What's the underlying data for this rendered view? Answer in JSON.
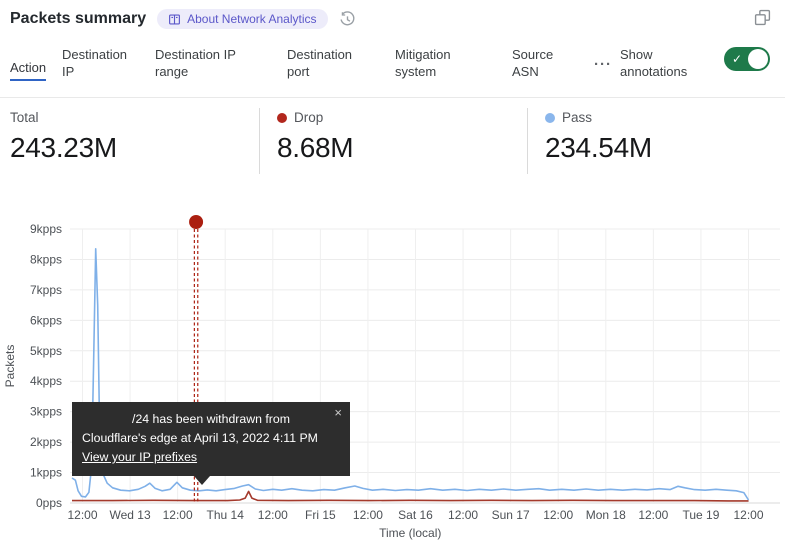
{
  "header": {
    "title": "Packets summary",
    "about_badge": "About Network Analytics",
    "icons": {
      "about": "book-icon",
      "time_window": "history-icon",
      "popout": "expand-icon"
    }
  },
  "tabs": {
    "items": [
      {
        "label": "Action",
        "active": true
      },
      {
        "label": "Destination IP",
        "active": false
      },
      {
        "label": "Destination IP range",
        "active": false
      },
      {
        "label": "Destination port",
        "active": false
      },
      {
        "label": "Mitigation system",
        "active": false
      },
      {
        "label": "Source ASN",
        "active": false
      }
    ],
    "more_glyph": "···",
    "show_annotations_label": "Show annotations",
    "annotations_enabled": true,
    "toggle_check_glyph": "✓"
  },
  "stats": {
    "items": [
      {
        "label": "Total",
        "value": "243.23M",
        "dot_color": null
      },
      {
        "label": "Drop",
        "value": "8.68M",
        "dot_color": "#b2271d"
      },
      {
        "label": "Pass",
        "value": "234.54M",
        "dot_color": "#8ab6ec"
      }
    ]
  },
  "annotation_tooltip": {
    "line1": "/24 has been withdrawn from",
    "line2": "Cloudflare's edge at April 13, 2022 4:11 PM",
    "link_label": "View your IP prefixes",
    "close_glyph": "×"
  },
  "colors": {
    "accent_blue": "#2f64c5",
    "toggle_green": "#1e7a4a",
    "drop_red": "#b2271d",
    "pass_blue": "#8ab6ec",
    "annotation_red": "#ab1f10",
    "tooltip_bg": "#2d2d2d",
    "badge_bg": "#edecfa",
    "badge_text": "#5b57c9"
  },
  "chart_data": {
    "type": "line",
    "title": "",
    "xlabel": "Time (local)",
    "ylabel": "Packets",
    "ylim": [
      0,
      9
    ],
    "y_unit": "kpps",
    "grid": true,
    "y_ticks": [
      "0pps",
      "1kpps",
      "2kpps",
      "3kpps",
      "4kpps",
      "5kpps",
      "6kpps",
      "7kpps",
      "8kpps",
      "9kpps"
    ],
    "x_ticks": [
      "12:00",
      "Wed 13",
      "12:00",
      "Thu 14",
      "12:00",
      "Fri 15",
      "12:00",
      "Sat 16",
      "12:00",
      "Sun 17",
      "12:00",
      "Mon 18",
      "12:00",
      "Tue 19",
      "12:00"
    ],
    "series": [
      {
        "name": "Pass",
        "color": "#7fb0e8",
        "points": [
          [
            0.0,
            0.82
          ],
          [
            0.005,
            0.75
          ],
          [
            0.009,
            0.4
          ],
          [
            0.014,
            0.22
          ],
          [
            0.02,
            0.2
          ],
          [
            0.025,
            0.35
          ],
          [
            0.029,
            1.2
          ],
          [
            0.032,
            4.6
          ],
          [
            0.035,
            8.35
          ],
          [
            0.038,
            6.5
          ],
          [
            0.041,
            2.2
          ],
          [
            0.045,
            1.0
          ],
          [
            0.052,
            0.65
          ],
          [
            0.06,
            0.5
          ],
          [
            0.072,
            0.42
          ],
          [
            0.085,
            0.4
          ],
          [
            0.098,
            0.45
          ],
          [
            0.108,
            0.55
          ],
          [
            0.115,
            0.65
          ],
          [
            0.123,
            0.48
          ],
          [
            0.133,
            0.4
          ],
          [
            0.145,
            0.45
          ],
          [
            0.155,
            0.68
          ],
          [
            0.163,
            0.5
          ],
          [
            0.175,
            0.42
          ],
          [
            0.188,
            0.4
          ],
          [
            0.2,
            0.43
          ],
          [
            0.213,
            0.4
          ],
          [
            0.226,
            0.44
          ],
          [
            0.24,
            0.48
          ],
          [
            0.252,
            0.56
          ],
          [
            0.261,
            0.6
          ],
          [
            0.271,
            0.46
          ],
          [
            0.283,
            0.41
          ],
          [
            0.297,
            0.45
          ],
          [
            0.31,
            0.42
          ],
          [
            0.325,
            0.47
          ],
          [
            0.34,
            0.42
          ],
          [
            0.356,
            0.4
          ],
          [
            0.372,
            0.44
          ],
          [
            0.388,
            0.42
          ],
          [
            0.404,
            0.5
          ],
          [
            0.418,
            0.56
          ],
          [
            0.43,
            0.48
          ],
          [
            0.444,
            0.42
          ],
          [
            0.46,
            0.45
          ],
          [
            0.478,
            0.41
          ],
          [
            0.495,
            0.44
          ],
          [
            0.512,
            0.42
          ],
          [
            0.53,
            0.47
          ],
          [
            0.548,
            0.42
          ],
          [
            0.566,
            0.45
          ],
          [
            0.584,
            0.41
          ],
          [
            0.602,
            0.45
          ],
          [
            0.62,
            0.42
          ],
          [
            0.638,
            0.46
          ],
          [
            0.656,
            0.42
          ],
          [
            0.674,
            0.45
          ],
          [
            0.69,
            0.47
          ],
          [
            0.706,
            0.42
          ],
          [
            0.724,
            0.45
          ],
          [
            0.742,
            0.42
          ],
          [
            0.76,
            0.46
          ],
          [
            0.778,
            0.42
          ],
          [
            0.796,
            0.45
          ],
          [
            0.814,
            0.42
          ],
          [
            0.832,
            0.45
          ],
          [
            0.85,
            0.43
          ],
          [
            0.868,
            0.47
          ],
          [
            0.884,
            0.44
          ],
          [
            0.896,
            0.55
          ],
          [
            0.906,
            0.5
          ],
          [
            0.92,
            0.44
          ],
          [
            0.936,
            0.42
          ],
          [
            0.952,
            0.45
          ],
          [
            0.968,
            0.42
          ],
          [
            0.982,
            0.4
          ],
          [
            0.993,
            0.34
          ],
          [
            1.0,
            0.1
          ]
        ]
      },
      {
        "name": "Drop",
        "color": "#a43a2c",
        "points": [
          [
            0.0,
            0.08
          ],
          [
            0.06,
            0.08
          ],
          [
            0.12,
            0.09
          ],
          [
            0.18,
            0.08
          ],
          [
            0.23,
            0.08
          ],
          [
            0.248,
            0.1
          ],
          [
            0.256,
            0.16
          ],
          [
            0.261,
            0.38
          ],
          [
            0.266,
            0.16
          ],
          [
            0.274,
            0.09
          ],
          [
            0.32,
            0.08
          ],
          [
            0.38,
            0.09
          ],
          [
            0.44,
            0.08
          ],
          [
            0.5,
            0.09
          ],
          [
            0.56,
            0.08
          ],
          [
            0.62,
            0.09
          ],
          [
            0.68,
            0.08
          ],
          [
            0.74,
            0.09
          ],
          [
            0.8,
            0.08
          ],
          [
            0.86,
            0.08
          ],
          [
            0.92,
            0.08
          ],
          [
            0.97,
            0.07
          ],
          [
            1.0,
            0.07
          ]
        ]
      }
    ],
    "annotation": {
      "x_fraction": 0.1834,
      "marker": "dot-with-dashed-line",
      "color": "#ab1f10"
    },
    "legend_position": "top-stats-row"
  }
}
